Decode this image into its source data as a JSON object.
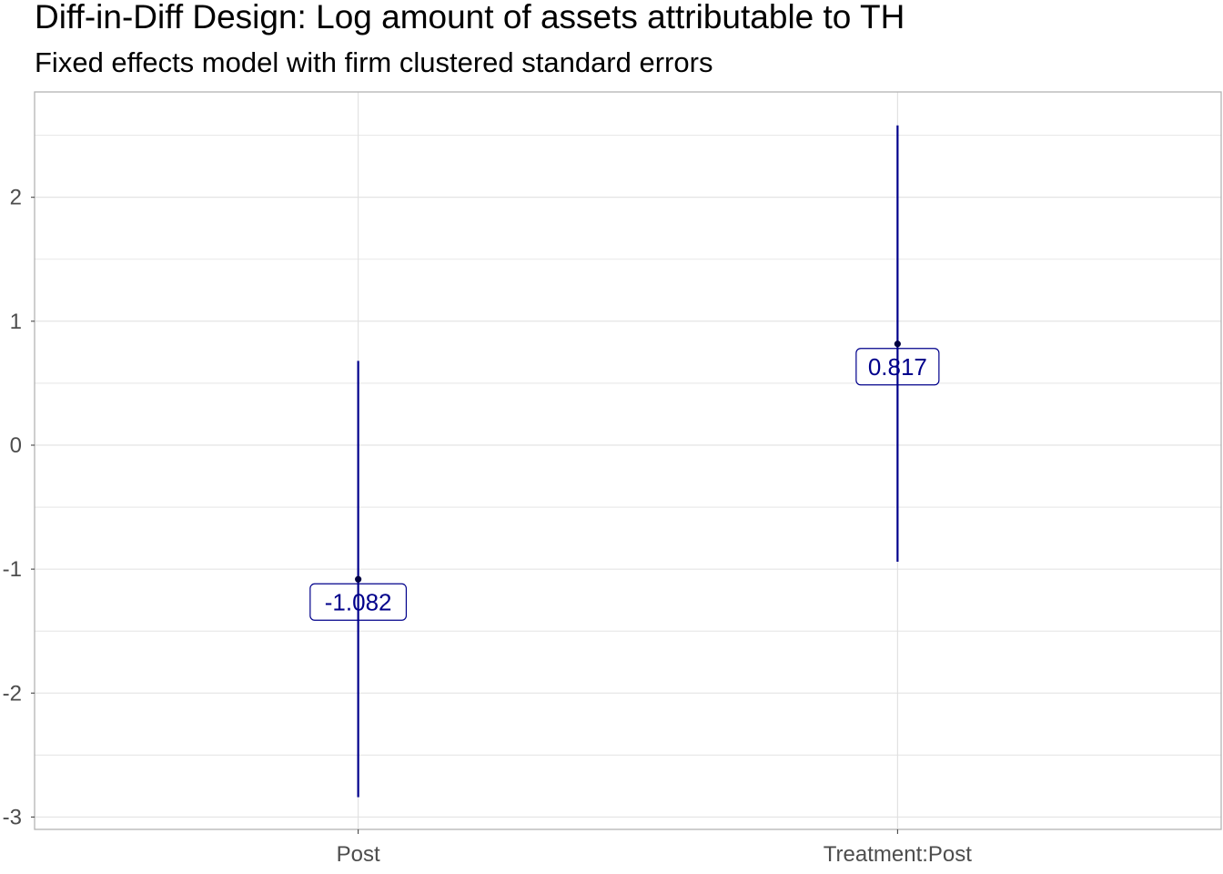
{
  "chart_data": {
    "type": "errorbar",
    "title": "Diff-in-Diff Design: Log amount of assets attributable to TH",
    "subtitle": "Fixed effects model with firm clustered standard errors",
    "xlabel": "",
    "ylabel": "",
    "categories": [
      "Post",
      "Treatment:Post"
    ],
    "estimates": [
      -1.082,
      0.817
    ],
    "lower": [
      -2.84,
      -0.94
    ],
    "upper": [
      0.68,
      2.58
    ],
    "data_labels": [
      "-1.082",
      "0.817"
    ],
    "ylim": [
      -3.1,
      2.85
    ],
    "yticks": [
      -3,
      -2,
      -1,
      0,
      1,
      2
    ],
    "ytick_labels": [
      "-3",
      "-2",
      "-1",
      "0",
      "1",
      "2"
    ],
    "grid": true,
    "legend": "none",
    "colors": {
      "series": "#00008b",
      "point": "#000040",
      "grid": "#e0e0e0",
      "axis_text": "#4d4d4d"
    }
  }
}
